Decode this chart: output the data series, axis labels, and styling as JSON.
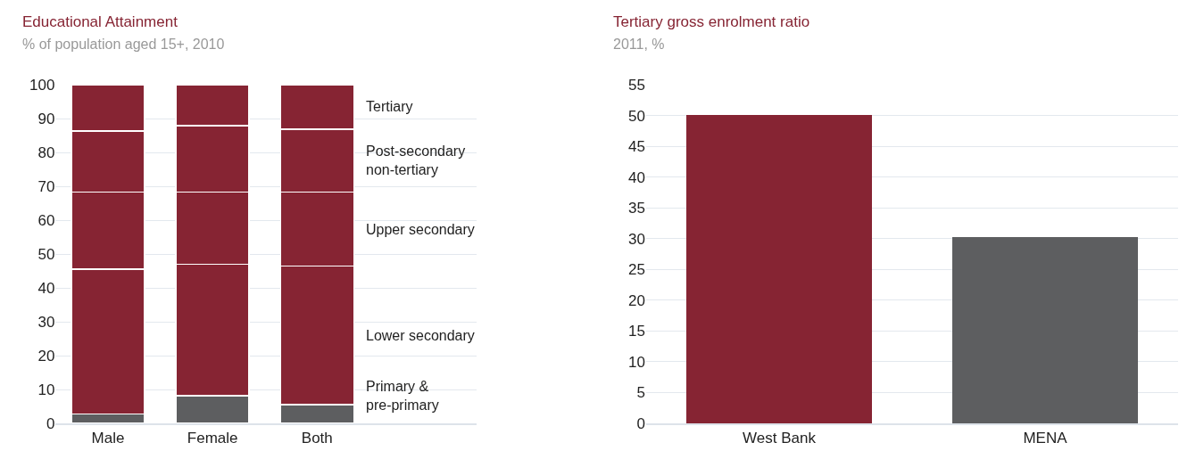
{
  "chart_data": [
    {
      "type": "bar",
      "title": "Educational Attainment",
      "subtitle": "% of population aged 15+, 2010",
      "categories": [
        "Male",
        "Female",
        "Both"
      ],
      "stacked": true,
      "series": [
        {
          "name": "Primary & pre-primary",
          "color": "#5d5e60",
          "values": [
            2.8,
            8.2,
            5.5
          ]
        },
        {
          "name": "Lower secondary",
          "color": "#862433",
          "values": [
            42.7,
            38.8,
            40.9
          ]
        },
        {
          "name": "Upper secondary",
          "color": "#862433",
          "values": [
            22.8,
            21.3,
            21.9
          ]
        },
        {
          "name": "Post-secondary non-tertiary",
          "color": "#862433",
          "values": [
            18.0,
            19.6,
            18.6
          ]
        },
        {
          "name": "Tertiary",
          "color": "#862433",
          "values": [
            13.7,
            12.1,
            13.1
          ]
        }
      ],
      "ylim": [
        0,
        100
      ],
      "yticks": [
        0,
        10,
        20,
        30,
        40,
        50,
        60,
        70,
        80,
        90,
        100
      ],
      "grid": "y"
    },
    {
      "type": "bar",
      "title": "Tertiary gross enrolment ratio",
      "subtitle": "2011, %",
      "categories": [
        "West Bank",
        "MENA"
      ],
      "values": [
        50.1,
        30.3
      ],
      "colors": [
        "#862433",
        "#5d5e60"
      ],
      "ylim": [
        0,
        55
      ],
      "yticks": [
        0,
        5,
        10,
        15,
        20,
        25,
        30,
        35,
        40,
        45,
        50,
        55
      ],
      "grid": "y"
    }
  ]
}
